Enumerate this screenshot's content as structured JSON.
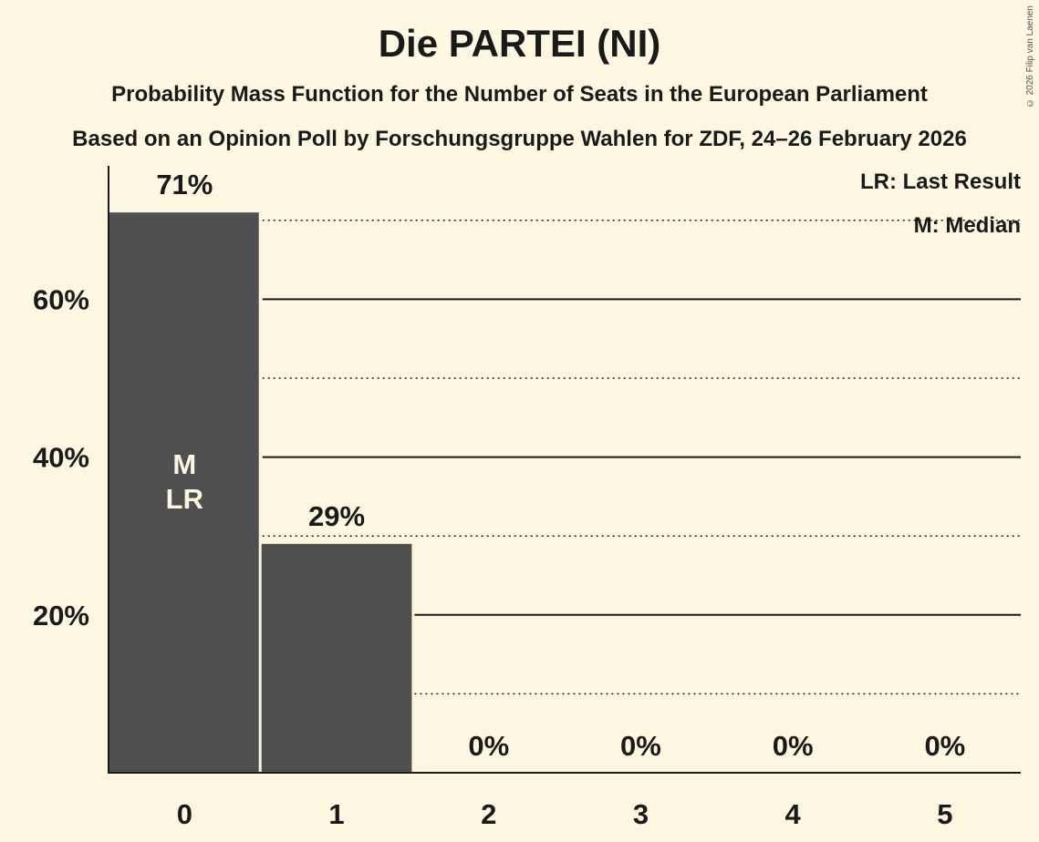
{
  "header": {
    "title": "Die PARTEI (NI)",
    "subtitle": "Probability Mass Function for the Number of Seats in the European Parliament",
    "source": "Based on an Opinion Poll by Forschungsgruppe Wahlen for ZDF, 24–26 February 2026",
    "copyright": "© 2026 Filip van Laenen"
  },
  "legend": {
    "last_result": "LR: Last Result",
    "median": "M: Median"
  },
  "colors": {
    "background": "#fdf7e2",
    "bar": "#4f4f4f",
    "text": "#1a1a1a",
    "bar_label": "#fdf7e2"
  },
  "chart_data": {
    "type": "bar",
    "title": "Die PARTEI (NI)",
    "subtitle": "Probability Mass Function for the Number of Seats in the European Parliament",
    "xlabel": "",
    "ylabel": "",
    "categories": [
      "0",
      "1",
      "2",
      "3",
      "4",
      "5"
    ],
    "values": [
      71,
      29,
      0,
      0,
      0,
      0
    ],
    "value_labels": [
      "71%",
      "29%",
      "0%",
      "0%",
      "0%",
      "0%"
    ],
    "yticks": [
      "20%",
      "40%",
      "60%"
    ],
    "ytick_values": [
      20,
      40,
      60
    ],
    "minor_gridlines": [
      10,
      30,
      50,
      70
    ],
    "ylim": [
      0,
      75
    ],
    "grid": true,
    "bar_annotations": [
      {
        "category": "0",
        "labels": [
          "M",
          "LR"
        ]
      }
    ],
    "legend_position": "top-right",
    "legend": [
      "LR: Last Result",
      "M: Median"
    ]
  }
}
